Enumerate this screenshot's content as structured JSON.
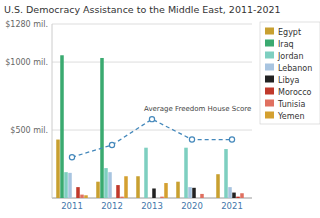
{
  "chart_data": {
    "type": "bar",
    "title": "U.S. Democracy Assistance to the Middle East, 2011-2021",
    "categories": [
      "2011",
      "2012",
      "2013",
      "2020",
      "2021"
    ],
    "series": [
      {
        "name": "Egypt",
        "color": "#c8a030",
        "values": [
          430,
          120,
          160,
          120,
          175
        ]
      },
      {
        "name": "Iraq",
        "color": "#3aaa70",
        "values": [
          1050,
          1030,
          0,
          0,
          0
        ]
      },
      {
        "name": "Jordan",
        "color": "#7ecfc0",
        "values": [
          190,
          220,
          370,
          370,
          360
        ]
      },
      {
        "name": "Lebanon",
        "color": "#a8c4e0",
        "values": [
          185,
          190,
          0,
          80,
          80
        ]
      },
      {
        "name": "Libya",
        "color": "#222222",
        "values": [
          0,
          0,
          70,
          75,
          40
        ]
      },
      {
        "name": "Morocco",
        "color": "#c0392b",
        "values": [
          80,
          95,
          0,
          0,
          10
        ]
      },
      {
        "name": "Tunisia",
        "color": "#e07060",
        "values": [
          25,
          10,
          10,
          30,
          35
        ]
      },
      {
        "name": "Yemen",
        "color": "#d4a030",
        "values": [
          20,
          160,
          110,
          0,
          0
        ]
      },
      {
        "name": "Average Freedom House Score",
        "type": "line",
        "color": "#4488bb",
        "marker": "circle",
        "line_style": "dashed",
        "values": [
          300,
          390,
          580,
          430,
          430
        ]
      }
    ],
    "ylim": [
      0,
      1280
    ],
    "yticks": [
      {
        "value": 500,
        "label": "$500 mil."
      },
      {
        "value": 1000,
        "label": "$1000 mil."
      },
      {
        "value": 1280,
        "label": "$1280 mil."
      }
    ],
    "grid": true,
    "legend": "right"
  }
}
